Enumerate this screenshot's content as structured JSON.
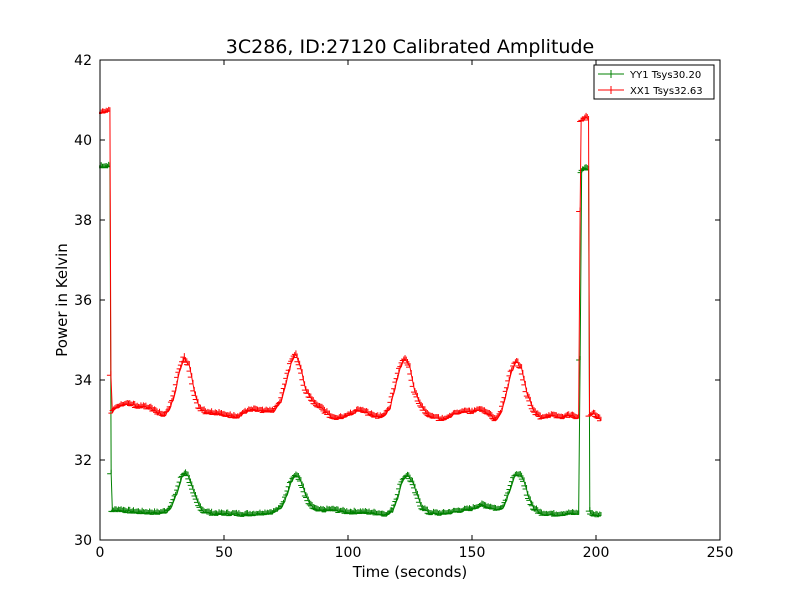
{
  "chart_data": {
    "type": "line",
    "title": "3C286, ID:27120 Calibrated Amplitude",
    "xlabel": "Time (seconds)",
    "ylabel": "Power in Kelvin",
    "xlim": [
      0,
      250
    ],
    "ylim": [
      30,
      42
    ],
    "xticks": [
      0,
      50,
      100,
      150,
      200,
      250
    ],
    "yticks": [
      30,
      32,
      34,
      36,
      38,
      40,
      42
    ],
    "grid": false,
    "legend_position": "top-right",
    "marker": "plus",
    "series": [
      {
        "name": "YY1 Tsys30.20",
        "color": "#008000",
        "points": [
          [
            0,
            39.35
          ],
          [
            1,
            39.33
          ],
          [
            2,
            39.32
          ],
          [
            3,
            39.33
          ],
          [
            4,
            39.33
          ],
          [
            4.5,
            31.65
          ],
          [
            5,
            30.72
          ],
          [
            8,
            30.74
          ],
          [
            12,
            30.7
          ],
          [
            16,
            30.68
          ],
          [
            20,
            30.67
          ],
          [
            24,
            30.66
          ],
          [
            27,
            30.7
          ],
          [
            29,
            30.85
          ],
          [
            31,
            31.15
          ],
          [
            33,
            31.55
          ],
          [
            34.5,
            31.68
          ],
          [
            36,
            31.55
          ],
          [
            38,
            31.15
          ],
          [
            40,
            30.85
          ],
          [
            42,
            30.7
          ],
          [
            46,
            30.64
          ],
          [
            52,
            30.64
          ],
          [
            58,
            30.62
          ],
          [
            64,
            30.64
          ],
          [
            70,
            30.68
          ],
          [
            73,
            30.78
          ],
          [
            75,
            31.05
          ],
          [
            77,
            31.45
          ],
          [
            79,
            31.62
          ],
          [
            81,
            31.48
          ],
          [
            83,
            31.1
          ],
          [
            85,
            30.85
          ],
          [
            88,
            30.72
          ],
          [
            94,
            30.74
          ],
          [
            100,
            30.68
          ],
          [
            106,
            30.68
          ],
          [
            112,
            30.65
          ],
          [
            116,
            30.62
          ],
          [
            118,
            30.72
          ],
          [
            120,
            31.05
          ],
          [
            122,
            31.48
          ],
          [
            124,
            31.62
          ],
          [
            126,
            31.45
          ],
          [
            128,
            31.1
          ],
          [
            130,
            30.8
          ],
          [
            133,
            30.66
          ],
          [
            138,
            30.64
          ],
          [
            144,
            30.7
          ],
          [
            150,
            30.76
          ],
          [
            154,
            30.86
          ],
          [
            158,
            30.8
          ],
          [
            161,
            30.74
          ],
          [
            163,
            30.85
          ],
          [
            165,
            31.2
          ],
          [
            167,
            31.55
          ],
          [
            169,
            31.65
          ],
          [
            171,
            31.45
          ],
          [
            173,
            31.05
          ],
          [
            175,
            30.78
          ],
          [
            178,
            30.65
          ],
          [
            184,
            30.62
          ],
          [
            190,
            30.65
          ],
          [
            193,
            30.64
          ],
          [
            193.6,
            34.5
          ],
          [
            194.2,
            39.2
          ],
          [
            195,
            39.25
          ],
          [
            196,
            39.3
          ],
          [
            197,
            39.25
          ],
          [
            197.5,
            30.7
          ],
          [
            199,
            30.62
          ],
          [
            201,
            30.6
          ],
          [
            202,
            30.6
          ]
        ]
      },
      {
        "name": "XX1 Tsys32.63",
        "color": "#ff0000",
        "points": [
          [
            0,
            40.68
          ],
          [
            1,
            40.7
          ],
          [
            2,
            40.68
          ],
          [
            3,
            40.7
          ],
          [
            4,
            40.72
          ],
          [
            4.4,
            34.1
          ],
          [
            5,
            33.2
          ],
          [
            8,
            33.35
          ],
          [
            12,
            33.38
          ],
          [
            16,
            33.32
          ],
          [
            20,
            33.3
          ],
          [
            23,
            33.18
          ],
          [
            26,
            33.1
          ],
          [
            28,
            33.25
          ],
          [
            30,
            33.6
          ],
          [
            32,
            34.2
          ],
          [
            34,
            34.55
          ],
          [
            36,
            34.35
          ],
          [
            38,
            33.75
          ],
          [
            40,
            33.3
          ],
          [
            43,
            33.18
          ],
          [
            48,
            33.15
          ],
          [
            52,
            33.1
          ],
          [
            56,
            33.05
          ],
          [
            60,
            33.25
          ],
          [
            65,
            33.22
          ],
          [
            70,
            33.2
          ],
          [
            73,
            33.45
          ],
          [
            75,
            33.9
          ],
          [
            77,
            34.4
          ],
          [
            79,
            34.65
          ],
          [
            81,
            34.3
          ],
          [
            83,
            33.75
          ],
          [
            86,
            33.45
          ],
          [
            90,
            33.25
          ],
          [
            95,
            33.0
          ],
          [
            100,
            33.1
          ],
          [
            105,
            33.25
          ],
          [
            110,
            33.1
          ],
          [
            114,
            33.05
          ],
          [
            117,
            33.3
          ],
          [
            119,
            33.8
          ],
          [
            121,
            34.3
          ],
          [
            123,
            34.52
          ],
          [
            125,
            34.3
          ],
          [
            127,
            33.7
          ],
          [
            130,
            33.3
          ],
          [
            134,
            33.05
          ],
          [
            138,
            33.0
          ],
          [
            142,
            33.1
          ],
          [
            146,
            33.2
          ],
          [
            150,
            33.18
          ],
          [
            154,
            33.25
          ],
          [
            158,
            33.1
          ],
          [
            160,
            32.98
          ],
          [
            162,
            33.2
          ],
          [
            164,
            33.7
          ],
          [
            166,
            34.2
          ],
          [
            168,
            34.45
          ],
          [
            170,
            34.3
          ],
          [
            172,
            33.7
          ],
          [
            175,
            33.2
          ],
          [
            178,
            33.05
          ],
          [
            182,
            33.1
          ],
          [
            186,
            33.05
          ],
          [
            190,
            33.1
          ],
          [
            193,
            33.05
          ],
          [
            193.6,
            38.2
          ],
          [
            194,
            40.45
          ],
          [
            195,
            40.5
          ],
          [
            196,
            40.55
          ],
          [
            197,
            40.5
          ],
          [
            197.4,
            33.1
          ],
          [
            199,
            33.15
          ],
          [
            201,
            33.05
          ],
          [
            202,
            32.98
          ]
        ]
      }
    ]
  }
}
